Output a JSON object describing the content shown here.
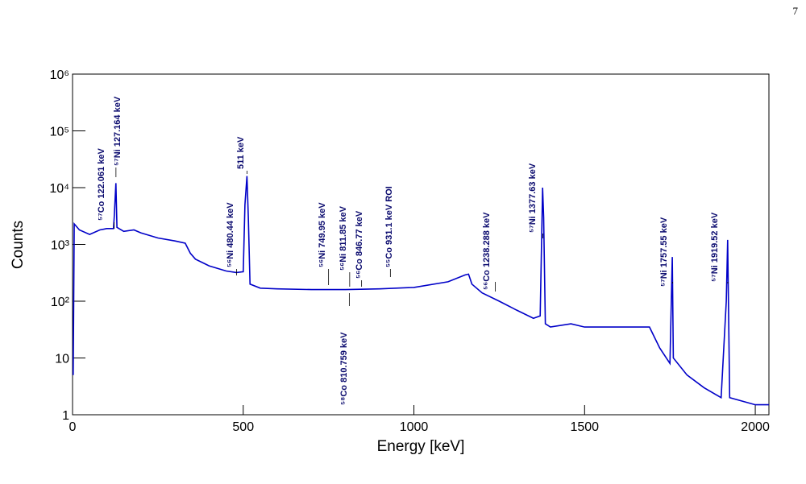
{
  "page_number": "7",
  "chart_data": {
    "type": "line",
    "log_y": true,
    "xlabel": "Energy [keV]",
    "ylabel": "Counts",
    "xlim": [
      0,
      2040
    ],
    "xticks": [
      0,
      500,
      1000,
      1500,
      2000
    ],
    "ylim": [
      1,
      1000000
    ],
    "yticks": [
      1,
      10,
      {
        "value": 100,
        "label": "10²"
      },
      {
        "value": 1000,
        "label": "10³"
      },
      {
        "value": 10000,
        "label": "10⁴"
      },
      {
        "value": 100000,
        "label": "10⁵"
      },
      {
        "value": 1000000,
        "label": "10⁶"
      }
    ],
    "series": [
      {
        "color": "#0000c8",
        "x": [
          2,
          5,
          20,
          50,
          80,
          100,
          120,
          122,
          127,
          130,
          150,
          180,
          200,
          250,
          300,
          330,
          345,
          360,
          400,
          450,
          480,
          500,
          505,
          511,
          515,
          520,
          550,
          600,
          700,
          800,
          900,
          1000,
          1100,
          1150,
          1160,
          1170,
          1200,
          1250,
          1300,
          1350,
          1370,
          1377,
          1380,
          1385,
          1400,
          1460,
          1500,
          1600,
          1690,
          1720,
          1750,
          1757,
          1760,
          1800,
          1850,
          1900,
          1915,
          1919,
          1925,
          2000,
          2040
        ],
        "values": [
          5,
          2300,
          1800,
          1500,
          1800,
          1900,
          1900,
          3000,
          12000,
          2000,
          1700,
          1800,
          1600,
          1300,
          1150,
          1050,
          700,
          550,
          420,
          340,
          320,
          330,
          5000,
          16000,
          3000,
          200,
          170,
          165,
          160,
          160,
          165,
          175,
          220,
          290,
          300,
          200,
          140,
          100,
          70,
          50,
          55,
          10000,
          3000,
          40,
          35,
          40,
          35,
          35,
          35,
          15,
          8,
          600,
          10,
          5,
          3,
          2,
          100,
          1200,
          2,
          1.5,
          1.5
        ]
      }
    ],
    "annotations": [
      {
        "text": "⁵⁷Co 122.061 keV",
        "energy": 122.061
      },
      {
        "text": "⁵⁷Ni 127.164 keV",
        "energy": 127.164
      },
      {
        "text": "⁵⁶Ni 480.44 keV",
        "energy": 480.44
      },
      {
        "text": "511 keV",
        "energy": 511
      },
      {
        "text": "⁵⁶Ni 749.95 keV",
        "energy": 749.95
      },
      {
        "text": "⁵⁶Ni 811.85 keV",
        "energy": 811.85
      },
      {
        "text": "⁵⁶Co 846.77 keV",
        "energy": 846.77
      },
      {
        "text": "⁵⁵Co 931.1 keV ROI",
        "energy": 931.1
      },
      {
        "text": "⁵⁸Co 810.759 keV",
        "energy": 810.759
      },
      {
        "text": "⁵⁶Co 1238.288 keV",
        "energy": 1238.288
      },
      {
        "text": "⁵⁷Ni 1377.63 keV",
        "energy": 1377.63
      },
      {
        "text": "⁵⁷Ni 1757.55 keV",
        "energy": 1757.55
      },
      {
        "text": "⁵⁷Ni 1919.52 keV",
        "energy": 1919.52
      }
    ]
  }
}
